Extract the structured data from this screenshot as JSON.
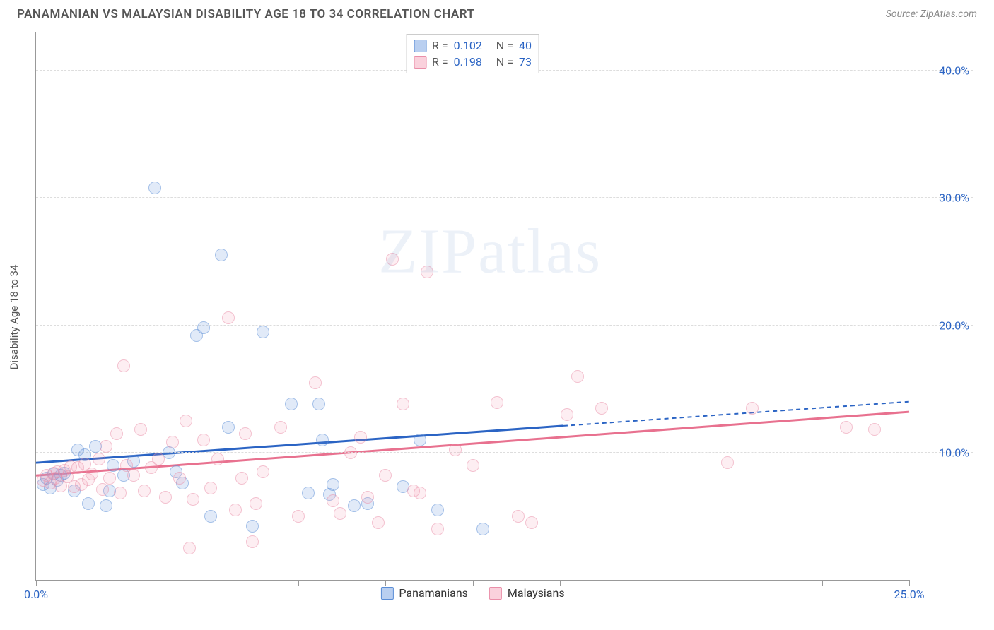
{
  "header": {
    "title": "PANAMANIAN VS MALAYSIAN DISABILITY AGE 18 TO 34 CORRELATION CHART",
    "source_prefix": "Source: ",
    "source_name": "ZipAtlas.com"
  },
  "watermark": {
    "zip": "ZIP",
    "atlas": "atlas"
  },
  "chart": {
    "type": "scatter",
    "y_axis_label": "Disability Age 18 to 34",
    "xlim": [
      0,
      25
    ],
    "ylim": [
      0,
      43
    ],
    "x_ticks": [
      0,
      2.5,
      5,
      7.5,
      10,
      12.5,
      15,
      17.5,
      20,
      22.5,
      25
    ],
    "x_tick_labels": {
      "0": "0.0%",
      "25": "25.0%"
    },
    "y_gridlines": [
      10,
      20,
      30,
      40,
      42.8
    ],
    "y_tick_labels": {
      "10": "10.0%",
      "20": "20.0%",
      "30": "30.0%",
      "40": "40.0%"
    },
    "background_color": "#ffffff",
    "grid_color": "#dddddd",
    "axis_color": "#999999",
    "label_color": "#2b64c4",
    "marker_radius": 9,
    "series": [
      {
        "id": "panamanians",
        "label": "Panamanians",
        "color_fill": "rgba(99,148,222,0.35)",
        "color_stroke": "#5a8dd6",
        "r": "0.102",
        "n": "40",
        "trend": {
          "y_at_x0": 9.2,
          "y_at_xmax": 14.0,
          "solid_until_x": 15.1,
          "stroke": "#2b64c4"
        },
        "points": [
          [
            0.2,
            7.5
          ],
          [
            0.3,
            8.0
          ],
          [
            0.4,
            7.2
          ],
          [
            0.5,
            8.3
          ],
          [
            0.6,
            7.8
          ],
          [
            0.7,
            8.2
          ],
          [
            0.8,
            8.4
          ],
          [
            1.1,
            7.0
          ],
          [
            1.2,
            10.2
          ],
          [
            1.4,
            9.8
          ],
          [
            1.5,
            6.0
          ],
          [
            1.7,
            10.5
          ],
          [
            2.0,
            5.8
          ],
          [
            2.1,
            7.0
          ],
          [
            2.2,
            9.0
          ],
          [
            2.5,
            8.2
          ],
          [
            2.8,
            9.3
          ],
          [
            3.4,
            30.8
          ],
          [
            3.8,
            10.0
          ],
          [
            4.0,
            8.5
          ],
          [
            4.2,
            7.6
          ],
          [
            4.6,
            19.2
          ],
          [
            4.8,
            19.8
          ],
          [
            5.0,
            5.0
          ],
          [
            5.3,
            25.5
          ],
          [
            5.5,
            12.0
          ],
          [
            6.2,
            4.2
          ],
          [
            6.5,
            19.5
          ],
          [
            7.3,
            13.8
          ],
          [
            7.8,
            6.8
          ],
          [
            8.1,
            13.8
          ],
          [
            8.2,
            11.0
          ],
          [
            8.4,
            6.7
          ],
          [
            8.5,
            7.5
          ],
          [
            9.1,
            5.8
          ],
          [
            9.5,
            6.0
          ],
          [
            10.5,
            7.3
          ],
          [
            11.0,
            11.0
          ],
          [
            11.5,
            5.5
          ],
          [
            12.8,
            4.0
          ]
        ]
      },
      {
        "id": "malaysians",
        "label": "Malaysians",
        "color_fill": "rgba(244,153,177,0.30)",
        "color_stroke": "#ea8fa9",
        "r": "0.198",
        "n": "73",
        "trend": {
          "y_at_x0": 8.2,
          "y_at_xmax": 13.2,
          "solid_until_x": 25,
          "stroke": "#e8718f"
        },
        "points": [
          [
            0.2,
            7.8
          ],
          [
            0.3,
            8.2
          ],
          [
            0.4,
            7.6
          ],
          [
            0.5,
            8.4
          ],
          [
            0.55,
            8.0
          ],
          [
            0.6,
            8.5
          ],
          [
            0.7,
            7.4
          ],
          [
            0.8,
            8.6
          ],
          [
            0.9,
            8.1
          ],
          [
            1.0,
            8.9
          ],
          [
            1.1,
            7.3
          ],
          [
            1.2,
            8.8
          ],
          [
            1.3,
            7.5
          ],
          [
            1.4,
            9.1
          ],
          [
            1.5,
            7.9
          ],
          [
            1.6,
            8.3
          ],
          [
            1.8,
            9.5
          ],
          [
            1.9,
            7.1
          ],
          [
            2.0,
            10.5
          ],
          [
            2.1,
            8.0
          ],
          [
            2.3,
            11.5
          ],
          [
            2.4,
            6.8
          ],
          [
            2.5,
            16.8
          ],
          [
            2.6,
            9.0
          ],
          [
            2.8,
            8.2
          ],
          [
            3.0,
            11.8
          ],
          [
            3.1,
            7.0
          ],
          [
            3.3,
            8.8
          ],
          [
            3.5,
            9.5
          ],
          [
            3.7,
            6.5
          ],
          [
            3.9,
            10.8
          ],
          [
            4.1,
            8.0
          ],
          [
            4.3,
            12.5
          ],
          [
            4.4,
            2.5
          ],
          [
            4.5,
            6.3
          ],
          [
            4.8,
            11.0
          ],
          [
            5.0,
            7.2
          ],
          [
            5.2,
            9.5
          ],
          [
            5.5,
            20.6
          ],
          [
            5.7,
            5.5
          ],
          [
            5.9,
            8.0
          ],
          [
            6.0,
            11.5
          ],
          [
            6.2,
            3.0
          ],
          [
            6.3,
            6.0
          ],
          [
            6.5,
            8.5
          ],
          [
            7.0,
            12.0
          ],
          [
            7.5,
            5.0
          ],
          [
            8.0,
            15.5
          ],
          [
            8.5,
            6.2
          ],
          [
            8.7,
            5.2
          ],
          [
            9.0,
            10.0
          ],
          [
            9.3,
            11.2
          ],
          [
            9.5,
            6.5
          ],
          [
            9.8,
            4.5
          ],
          [
            10.0,
            8.2
          ],
          [
            10.2,
            25.2
          ],
          [
            10.5,
            13.8
          ],
          [
            10.8,
            7.0
          ],
          [
            11.0,
            6.8
          ],
          [
            11.2,
            24.2
          ],
          [
            11.5,
            4.0
          ],
          [
            12.0,
            10.2
          ],
          [
            12.5,
            9.0
          ],
          [
            13.2,
            13.9
          ],
          [
            13.8,
            5.0
          ],
          [
            14.2,
            4.5
          ],
          [
            15.2,
            13.0
          ],
          [
            15.5,
            16.0
          ],
          [
            16.2,
            13.5
          ],
          [
            19.8,
            9.2
          ],
          [
            20.5,
            13.5
          ],
          [
            23.2,
            12.0
          ],
          [
            24.0,
            11.8
          ]
        ]
      }
    ],
    "legend_top": {
      "r_label": "R =",
      "n_label": "N ="
    },
    "legend_bottom": [
      {
        "swatch": "blue",
        "label": "Panamanians"
      },
      {
        "swatch": "pink",
        "label": "Malaysians"
      }
    ]
  }
}
